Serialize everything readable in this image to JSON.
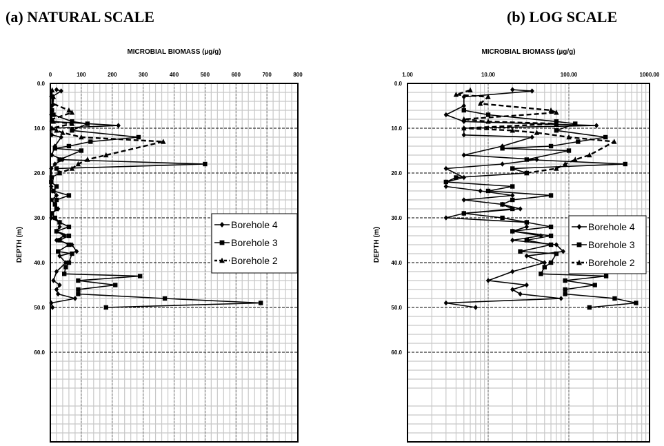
{
  "panels": {
    "a_title": "(a) NATURAL SCALE",
    "b_title": "(b) LOG SCALE"
  },
  "chart_data": [
    {
      "type": "line",
      "title": "(a) NATURAL SCALE",
      "xlabel": "MICROBIAL BIOMASS (µg/g)",
      "ylabel": "DEPTH (m)",
      "x_axis_position": "top",
      "y_inverted": true,
      "xlim": [
        0,
        800
      ],
      "ylim": [
        0,
        80
      ],
      "x_ticks": [
        0,
        100,
        200,
        300,
        400,
        500,
        600,
        700,
        800
      ],
      "x_tick_labels": [
        "0",
        "100",
        "200",
        "300",
        "400",
        "500",
        "600",
        "700",
        "800"
      ],
      "y_ticks": [
        0,
        10,
        20,
        30,
        40,
        50,
        60
      ],
      "y_tick_labels": [
        "0.0",
        "10.0",
        "20.0",
        "30.0",
        "40.0",
        "50.0",
        "60.0"
      ],
      "grid": true,
      "legend_position": "right-middle",
      "series": [
        {
          "name": "Borehole 4",
          "marker": "diamond",
          "dash": "solid",
          "points": [
            [
              20,
              1.4
            ],
            [
              35,
              1.7
            ],
            [
              5,
              3
            ],
            [
              5,
              5
            ],
            [
              3,
              7
            ],
            [
              5,
              8.5
            ],
            [
              220,
              9.4
            ],
            [
              5,
              10
            ],
            [
              5,
              11.5
            ],
            [
              35,
              12
            ],
            [
              15,
              14
            ],
            [
              5,
              16
            ],
            [
              40,
              17
            ],
            [
              15,
              18
            ],
            [
              3,
              19
            ],
            [
              5,
              21
            ],
            [
              3,
              22
            ],
            [
              3,
              23
            ],
            [
              8,
              24
            ],
            [
              20,
              25
            ],
            [
              5,
              26
            ],
            [
              15,
              27
            ],
            [
              25,
              28
            ],
            [
              5,
              29
            ],
            [
              3,
              30
            ],
            [
              30,
              31
            ],
            [
              30,
              32
            ],
            [
              20,
              33
            ],
            [
              45,
              34
            ],
            [
              20,
              35
            ],
            [
              70,
              36
            ],
            [
              85,
              37.5
            ],
            [
              30,
              38.5
            ],
            [
              50,
              40
            ],
            [
              20,
              42
            ],
            [
              10,
              44
            ],
            [
              30,
              45
            ],
            [
              20,
              46
            ],
            [
              25,
              47
            ],
            [
              80,
              48
            ],
            [
              3,
              49
            ],
            [
              7,
              50
            ]
          ]
        },
        {
          "name": "Borehole 3",
          "marker": "square",
          "dash": "solid",
          "points": [
            [
              5,
              6
            ],
            [
              10,
              7
            ],
            [
              70,
              8.5
            ],
            [
              120,
              9
            ],
            [
              70,
              10.5
            ],
            [
              285,
              12
            ],
            [
              130,
              13
            ],
            [
              60,
              14
            ],
            [
              15,
              14.5
            ],
            [
              100,
              15
            ],
            [
              30,
              17
            ],
            [
              500,
              18
            ],
            [
              20,
              19
            ],
            [
              30,
              20
            ],
            [
              4,
              21
            ],
            [
              3,
              22
            ],
            [
              20,
              23
            ],
            [
              10,
              24
            ],
            [
              60,
              25
            ],
            [
              20,
              26
            ],
            [
              15,
              27
            ],
            [
              20,
              28
            ],
            [
              5,
              29
            ],
            [
              15,
              30
            ],
            [
              30,
              31
            ],
            [
              60,
              32
            ],
            [
              20,
              33
            ],
            [
              60,
              34
            ],
            [
              30,
              35
            ],
            [
              60,
              36
            ],
            [
              25,
              37.5
            ],
            [
              70,
              38
            ],
            [
              60,
              40
            ],
            [
              50,
              41
            ],
            [
              45,
              42.5
            ],
            [
              290,
              43
            ],
            [
              90,
              44
            ],
            [
              210,
              45
            ],
            [
              90,
              46
            ],
            [
              90,
              47
            ],
            [
              370,
              48
            ],
            [
              680,
              49
            ],
            [
              180,
              50
            ]
          ]
        },
        {
          "name": "Borehole 2",
          "marker": "triangle",
          "dash": "dashed",
          "points": [
            [
              6,
              1.5
            ],
            [
              4,
              2.5
            ],
            [
              10,
              3
            ],
            [
              8,
              4.5
            ],
            [
              60,
              6
            ],
            [
              70,
              6.5
            ],
            [
              5,
              8
            ],
            [
              10,
              8.5
            ],
            [
              70,
              9
            ],
            [
              5,
              10
            ],
            [
              20,
              10.5
            ],
            [
              40,
              11
            ],
            [
              100,
              12
            ],
            [
              365,
              13
            ],
            [
              180,
              16
            ],
            [
              120,
              17
            ],
            [
              90,
              18
            ],
            [
              70,
              19
            ],
            [
              30,
              20
            ]
          ]
        }
      ]
    },
    {
      "type": "line",
      "title": "(b) LOG SCALE",
      "xlabel": "MICROBIAL BIOMASS (µg/g)",
      "ylabel": "DEPTH (m)",
      "x_axis_position": "top",
      "x_scale": "log",
      "y_inverted": true,
      "xlim": [
        1,
        1000
      ],
      "ylim": [
        0,
        80
      ],
      "x_ticks": [
        1,
        10,
        100,
        1000
      ],
      "x_tick_labels": [
        "1.00",
        "10.00",
        "100.00",
        "1000.00"
      ],
      "y_ticks": [
        0,
        10,
        20,
        30,
        40,
        50,
        60
      ],
      "y_tick_labels": [
        "0.0",
        "10.0",
        "20.0",
        "30.0",
        "40.0",
        "50.0",
        "60.0"
      ],
      "grid": true,
      "legend_position": "right-middle",
      "series": [
        {
          "name": "Borehole 4",
          "marker": "diamond",
          "dash": "solid",
          "points": [
            [
              20,
              1.4
            ],
            [
              35,
              1.7
            ],
            [
              5,
              3
            ],
            [
              5,
              5
            ],
            [
              3,
              7
            ],
            [
              5,
              8.5
            ],
            [
              220,
              9.4
            ],
            [
              5,
              10
            ],
            [
              5,
              11.5
            ],
            [
              35,
              12
            ],
            [
              15,
              14
            ],
            [
              5,
              16
            ],
            [
              40,
              17
            ],
            [
              15,
              18
            ],
            [
              3,
              19
            ],
            [
              5,
              21
            ],
            [
              3,
              22
            ],
            [
              3,
              23
            ],
            [
              8,
              24
            ],
            [
              20,
              25
            ],
            [
              5,
              26
            ],
            [
              15,
              27
            ],
            [
              25,
              28
            ],
            [
              5,
              29
            ],
            [
              3,
              30
            ],
            [
              30,
              31
            ],
            [
              30,
              32
            ],
            [
              20,
              33
            ],
            [
              45,
              34
            ],
            [
              20,
              35
            ],
            [
              70,
              36
            ],
            [
              85,
              37.5
            ],
            [
              30,
              38.5
            ],
            [
              50,
              40
            ],
            [
              20,
              42
            ],
            [
              10,
              44
            ],
            [
              30,
              45
            ],
            [
              20,
              46
            ],
            [
              25,
              47
            ],
            [
              80,
              48
            ],
            [
              3,
              49
            ],
            [
              7,
              50
            ]
          ]
        },
        {
          "name": "Borehole 3",
          "marker": "square",
          "dash": "solid",
          "points": [
            [
              5,
              6
            ],
            [
              10,
              7
            ],
            [
              70,
              8.5
            ],
            [
              120,
              9
            ],
            [
              70,
              10.5
            ],
            [
              285,
              12
            ],
            [
              130,
              13
            ],
            [
              60,
              14
            ],
            [
              15,
              14.5
            ],
            [
              100,
              15
            ],
            [
              30,
              17
            ],
            [
              500,
              18
            ],
            [
              20,
              19
            ],
            [
              30,
              20
            ],
            [
              4,
              21
            ],
            [
              3,
              22
            ],
            [
              20,
              23
            ],
            [
              10,
              24
            ],
            [
              60,
              25
            ],
            [
              20,
              26
            ],
            [
              15,
              27
            ],
            [
              20,
              28
            ],
            [
              5,
              29
            ],
            [
              15,
              30
            ],
            [
              30,
              31
            ],
            [
              60,
              32
            ],
            [
              20,
              33
            ],
            [
              60,
              34
            ],
            [
              30,
              35
            ],
            [
              60,
              36
            ],
            [
              25,
              37.5
            ],
            [
              70,
              38
            ],
            [
              60,
              40
            ],
            [
              50,
              41
            ],
            [
              45,
              42.5
            ],
            [
              290,
              43
            ],
            [
              90,
              44
            ],
            [
              210,
              45
            ],
            [
              90,
              46
            ],
            [
              90,
              47
            ],
            [
              370,
              48
            ],
            [
              680,
              49
            ],
            [
              180,
              50
            ]
          ]
        },
        {
          "name": "Borehole 2",
          "marker": "triangle",
          "dash": "dashed",
          "points": [
            [
              6,
              1.5
            ],
            [
              4,
              2.5
            ],
            [
              10,
              3
            ],
            [
              8,
              4.5
            ],
            [
              60,
              6
            ],
            [
              70,
              6.5
            ],
            [
              5,
              8
            ],
            [
              10,
              8.5
            ],
            [
              70,
              9
            ],
            [
              5,
              10
            ],
            [
              20,
              10.5
            ],
            [
              40,
              11
            ],
            [
              100,
              12
            ],
            [
              365,
              13
            ],
            [
              180,
              16
            ],
            [
              120,
              17
            ],
            [
              90,
              18
            ],
            [
              70,
              19
            ],
            [
              30,
              20
            ]
          ]
        }
      ]
    }
  ]
}
